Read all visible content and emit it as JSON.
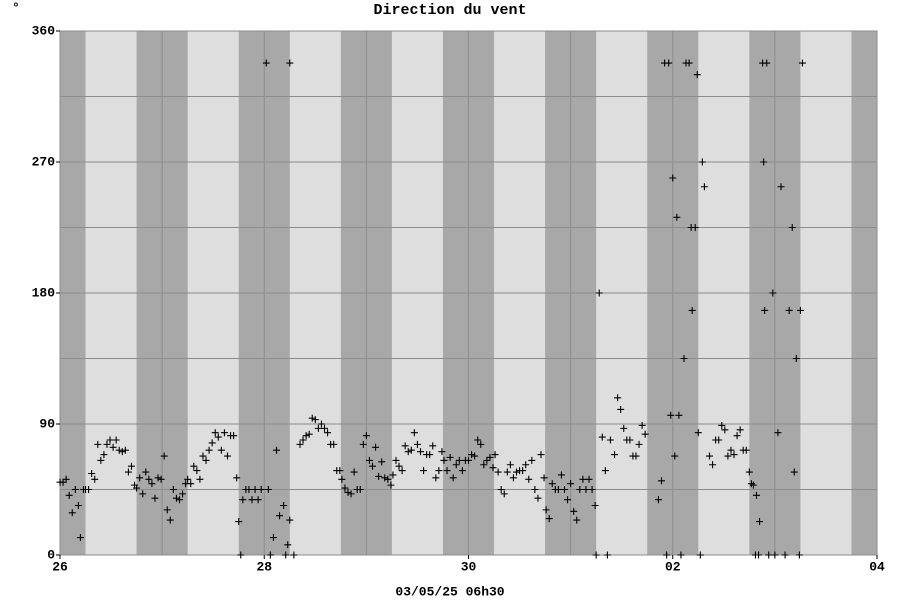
{
  "chart_data": {
    "type": "scatter",
    "title": "Direction du vent",
    "unit_label": "°",
    "x_label": "03/05/25 06h30",
    "marker": "+",
    "color": "#000000",
    "band_color": "#a8a8a8",
    "background_color": "#dedede",
    "grid_color": "#8c8c8c",
    "grid": true,
    "xlim": [
      0,
      8
    ],
    "xticks": [
      {
        "value": 0,
        "label": "26"
      },
      {
        "value": 2,
        "label": "28"
      },
      {
        "value": 4,
        "label": "30"
      },
      {
        "value": 6,
        "label": "02"
      },
      {
        "value": 8,
        "label": "04"
      }
    ],
    "x_minor_grid": [
      1,
      3,
      5,
      7
    ],
    "ylim": [
      0,
      360
    ],
    "yticks": [
      0,
      90,
      180,
      270,
      360
    ],
    "y_minor_grid": [
      45,
      135,
      225,
      315
    ],
    "shaded_bands": [
      [
        0,
        0.25
      ],
      [
        0.75,
        1.25
      ],
      [
        1.75,
        2.25
      ],
      [
        2.75,
        3.25
      ],
      [
        3.75,
        4.25
      ],
      [
        4.75,
        5.25
      ],
      [
        5.75,
        6.25
      ],
      [
        6.75,
        7.25
      ],
      [
        7.75,
        8
      ]
    ],
    "x": [
      0.0,
      0.03,
      0.06,
      0.09,
      0.12,
      0.15,
      0.18,
      0.2,
      0.23,
      0.25,
      0.28,
      0.31,
      0.34,
      0.37,
      0.4,
      0.43,
      0.46,
      0.49,
      0.52,
      0.55,
      0.58,
      0.61,
      0.64,
      0.67,
      0.7,
      0.73,
      0.75,
      0.78,
      0.81,
      0.84,
      0.87,
      0.9,
      0.93,
      0.96,
      0.99,
      1.02,
      1.05,
      1.08,
      1.11,
      1.14,
      1.17,
      1.2,
      1.23,
      1.25,
      1.28,
      1.31,
      1.34,
      1.37,
      1.4,
      1.43,
      1.46,
      1.49,
      1.52,
      1.55,
      1.58,
      1.61,
      1.64,
      1.67,
      1.7,
      1.73,
      1.75,
      1.77,
      1.79,
      1.82,
      1.85,
      1.88,
      1.91,
      1.94,
      1.97,
      2.02,
      2.04,
      2.06,
      2.09,
      2.12,
      2.15,
      2.19,
      2.21,
      2.23,
      2.25,
      2.25,
      2.29,
      2.35,
      2.38,
      2.41,
      2.44,
      2.47,
      2.5,
      2.53,
      2.56,
      2.59,
      2.62,
      2.65,
      2.68,
      2.71,
      2.74,
      2.76,
      2.79,
      2.82,
      2.85,
      2.88,
      2.91,
      2.94,
      2.97,
      3.0,
      3.03,
      3.06,
      3.09,
      3.12,
      3.15,
      3.18,
      3.21,
      3.24,
      3.26,
      3.29,
      3.32,
      3.35,
      3.38,
      3.41,
      3.44,
      3.47,
      3.5,
      3.53,
      3.56,
      3.59,
      3.62,
      3.65,
      3.68,
      3.71,
      3.74,
      3.76,
      3.79,
      3.82,
      3.85,
      3.88,
      3.91,
      3.94,
      3.97,
      4.0,
      4.03,
      4.06,
      4.09,
      4.12,
      4.15,
      4.18,
      4.21,
      4.24,
      4.26,
      4.29,
      4.32,
      4.35,
      4.38,
      4.41,
      4.44,
      4.47,
      4.5,
      4.53,
      4.56,
      4.59,
      4.62,
      4.65,
      4.68,
      4.71,
      4.74,
      4.76,
      4.79,
      4.82,
      4.85,
      4.88,
      4.91,
      4.94,
      4.97,
      5.0,
      5.03,
      5.06,
      5.09,
      5.12,
      5.15,
      5.18,
      5.21,
      5.24,
      5.25,
      5.28,
      5.31,
      5.34,
      5.36,
      5.39,
      5.43,
      5.46,
      5.49,
      5.52,
      5.55,
      5.58,
      5.61,
      5.64,
      5.67,
      5.7,
      5.73,
      5.86,
      5.89,
      5.92,
      5.94,
      5.96,
      5.98,
      6.0,
      6.02,
      6.04,
      6.06,
      6.08,
      6.11,
      6.13,
      6.16,
      6.18,
      6.19,
      6.22,
      6.24,
      6.25,
      6.27,
      6.29,
      6.31,
      6.36,
      6.39,
      6.42,
      6.45,
      6.48,
      6.51,
      6.54,
      6.57,
      6.6,
      6.63,
      6.66,
      6.69,
      6.72,
      6.75,
      6.77,
      6.79,
      6.81,
      6.82,
      6.84,
      6.85,
      6.88,
      6.89,
      6.9,
      6.92,
      6.94,
      6.98,
      7.0,
      7.03,
      7.06,
      7.1,
      7.14,
      7.17,
      7.19,
      7.21,
      7.24,
      7.25,
      7.27
    ],
    "values": [
      50,
      50,
      52,
      41,
      29,
      45,
      34,
      12,
      45,
      45,
      45,
      56,
      52,
      76,
      65,
      69,
      76,
      79,
      74,
      79,
      72,
      71,
      72,
      57,
      61,
      48,
      46,
      53,
      42,
      57,
      52,
      49,
      39,
      53,
      52,
      68,
      31,
      24,
      45,
      39,
      38,
      42,
      49,
      52,
      49,
      61,
      58,
      52,
      68,
      65,
      72,
      77,
      84,
      81,
      72,
      84,
      68,
      82,
      82,
      53,
      23,
      0,
      38,
      45,
      45,
      38,
      45,
      38,
      45,
      338,
      45,
      0,
      12,
      72,
      27,
      34,
      0,
      7,
      24,
      338,
      0,
      76,
      79,
      82,
      83,
      94,
      93,
      87,
      90,
      87,
      84,
      76,
      76,
      58,
      58,
      52,
      46,
      43,
      42,
      57,
      45,
      45,
      76,
      82,
      65,
      61,
      74,
      54,
      64,
      53,
      52,
      48,
      55,
      65,
      61,
      58,
      75,
      71,
      72,
      84,
      76,
      71,
      58,
      69,
      69,
      75,
      53,
      58,
      71,
      65,
      58,
      67,
      53,
      62,
      65,
      58,
      65,
      65,
      69,
      68,
      79,
      76,
      62,
      65,
      67,
      60,
      69,
      57,
      45,
      42,
      57,
      62,
      53,
      57,
      58,
      58,
      62,
      52,
      65,
      45,
      39,
      69,
      53,
      31,
      25,
      49,
      45,
      45,
      55,
      45,
      38,
      49,
      30,
      24,
      45,
      52,
      45,
      52,
      45,
      34,
      0,
      180,
      81,
      58,
      0,
      79,
      69,
      108,
      100,
      87,
      79,
      79,
      68,
      68,
      76,
      89,
      83,
      38,
      51,
      338,
      0,
      338,
      96,
      259,
      68,
      232,
      96,
      0,
      135,
      338,
      338,
      225,
      168,
      225,
      330,
      84,
      0,
      270,
      253,
      68,
      62,
      79,
      79,
      89,
      86,
      68,
      72,
      69,
      82,
      86,
      72,
      72,
      57,
      49,
      48,
      0,
      41,
      0,
      23,
      338,
      270,
      168,
      338,
      0,
      180,
      0,
      84,
      253,
      0,
      168,
      225,
      57,
      135,
      0,
      168,
      338
    ]
  }
}
